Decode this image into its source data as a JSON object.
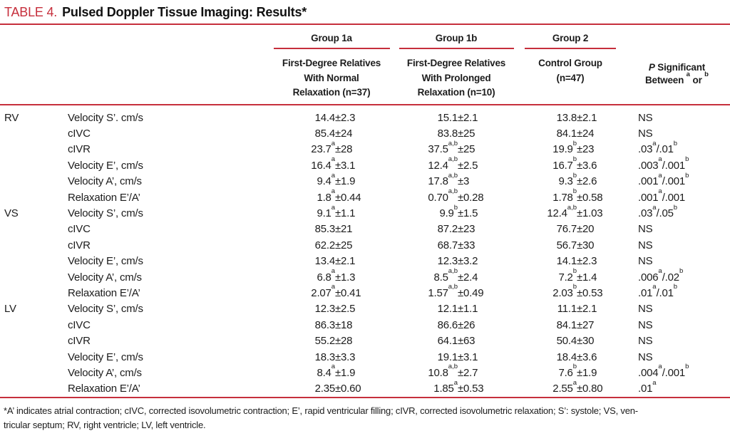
{
  "colors": {
    "accent_red": "#c62f3c",
    "text": "#1c1c1c"
  },
  "title": {
    "tag": "TABLE 4.",
    "text": "Pulsed Doppler Tissue Imaging: Results*"
  },
  "header": {
    "groups": [
      {
        "name": "Group 1a",
        "desc": "First-Degree Relatives\nWith Normal\nRelaxation (n=37)"
      },
      {
        "name": "Group 1b",
        "desc": "First-Degree Relatives\nWith Prolonged\nRelaxation (n=10)"
      },
      {
        "name": "Group 2",
        "desc": "Control Group\n(n=47)"
      }
    ],
    "p_col": {
      "italic": "P",
      "rest": " Significant",
      "line2": "Between ^a^ or ^b^"
    }
  },
  "sections": [
    {
      "region": "RV",
      "rows": [
        {
          "label": "Velocity S’. cm/s",
          "g1a": {
            "v": "14.4",
            "s": "",
            "d": "±2.3"
          },
          "g1b": {
            "v": "15.1",
            "s": "",
            "d": "±2.1"
          },
          "g2": {
            "v": "13.8",
            "s": "",
            "d": "±2.1"
          },
          "p": "NS"
        },
        {
          "label": "cIVC",
          "g1a": {
            "v": "85.4",
            "s": "",
            "d": "±24"
          },
          "g1b": {
            "v": "83.8",
            "s": "",
            "d": "±25"
          },
          "g2": {
            "v": "84.1",
            "s": "",
            "d": "±24"
          },
          "p": "NS"
        },
        {
          "label": "cIVR",
          "g1a": {
            "v": "23.7",
            "s": "a",
            "d": "±28"
          },
          "g1b": {
            "v": "37.5",
            "s": "a,b",
            "d": "±25"
          },
          "g2": {
            "v": "19.9",
            "s": "b",
            "d": "±23"
          },
          "p": ".03^a^/.01^b^"
        },
        {
          "label": "Velocity E’, cm/s",
          "g1a": {
            "v": "16.4",
            "s": "a",
            "d": "±3.1"
          },
          "g1b": {
            "v": "12.4",
            "s": "a,b",
            "d": "±2.5"
          },
          "g2": {
            "v": "16.7",
            "s": "b",
            "d": "±3.6"
          },
          "p": ".003^a^/.001^b^"
        },
        {
          "label": "Velocity A’, cm/s",
          "g1a": {
            "v": "9.4",
            "s": "a",
            "d": "±1.9"
          },
          "g1b": {
            "v": "17.8",
            "s": "a,b",
            "d": "±3"
          },
          "g2": {
            "v": "9.3",
            "s": "b",
            "d": "±2.6"
          },
          "p": ".001^a^/.001^b^"
        },
        {
          "label": "Relaxation E’/A’",
          "g1a": {
            "v": "1.8",
            "s": "a",
            "d": "±0.44"
          },
          "g1b": {
            "v": "0.70",
            "s": "a,b",
            "d": "±0.28"
          },
          "g2": {
            "v": "1.78",
            "s": "b",
            "d": "±0.58"
          },
          "p": ".001^a^/.001"
        }
      ]
    },
    {
      "region": "VS",
      "rows": [
        {
          "label": "Velocity S’, cm/s",
          "g1a": {
            "v": "9.1",
            "s": "a",
            "d": "±1.1"
          },
          "g1b": {
            "v": "9.9",
            "s": "b",
            "d": "±1.5"
          },
          "g2": {
            "v": "12.4",
            "s": "a,b",
            "d": "±1.03"
          },
          "p": ".03^a^/.05^b^"
        },
        {
          "label": "cIVC",
          "g1a": {
            "v": "85.3",
            "s": "",
            "d": "±21"
          },
          "g1b": {
            "v": "87.2",
            "s": "",
            "d": "±23"
          },
          "g2": {
            "v": "76.7",
            "s": "",
            "d": "±20"
          },
          "p": "NS"
        },
        {
          "label": "cIVR",
          "g1a": {
            "v": "62.2",
            "s": "",
            "d": "±25"
          },
          "g1b": {
            "v": "68.7",
            "s": "",
            "d": "±33"
          },
          "g2": {
            "v": "56.7",
            "s": "",
            "d": "±30"
          },
          "p": "NS"
        },
        {
          "label": "Velocity E’, cm/s",
          "g1a": {
            "v": "13.4",
            "s": "",
            "d": "±2.1"
          },
          "g1b": {
            "v": "12.3",
            "s": "",
            "d": "±3.2"
          },
          "g2": {
            "v": "14.1",
            "s": "",
            "d": "±2.3"
          },
          "p": "NS"
        },
        {
          "label": "Velocity A’, cm/s",
          "g1a": {
            "v": "6.8",
            "s": "a",
            "d": "±1.3"
          },
          "g1b": {
            "v": "8.5",
            "s": "a,b",
            "d": "±2.4"
          },
          "g2": {
            "v": "7.2",
            "s": "b",
            "d": "±1.4"
          },
          "p": ".006^a^/.02^b^"
        },
        {
          "label": "Relaxation E’/A’",
          "g1a": {
            "v": "2.07",
            "s": "a",
            "d": "±0.41"
          },
          "g1b": {
            "v": "1.57",
            "s": "a,b",
            "d": "±0.49"
          },
          "g2": {
            "v": "2.03",
            "s": "b",
            "d": "±0.53"
          },
          "p": ".01^a^/.01^b^"
        }
      ]
    },
    {
      "region": "LV",
      "rows": [
        {
          "label": "Velocity S’, cm/s",
          "g1a": {
            "v": "12.3",
            "s": "",
            "d": "±2.5"
          },
          "g1b": {
            "v": "12.1",
            "s": "",
            "d": "±1.1"
          },
          "g2": {
            "v": "11.1",
            "s": "",
            "d": "±2.1"
          },
          "p": "NS"
        },
        {
          "label": "cIVC",
          "g1a": {
            "v": "86.3",
            "s": "",
            "d": "±18"
          },
          "g1b": {
            "v": "86.6",
            "s": "",
            "d": "±26"
          },
          "g2": {
            "v": "84.1",
            "s": "",
            "d": "±27"
          },
          "p": "NS"
        },
        {
          "label": "cIVR",
          "g1a": {
            "v": "55.2",
            "s": "",
            "d": "±28"
          },
          "g1b": {
            "v": "64.1",
            "s": "",
            "d": "±63"
          },
          "g2": {
            "v": "50.4",
            "s": "",
            "d": "±30"
          },
          "p": "NS"
        },
        {
          "label": "Velocity E’, cm/s",
          "g1a": {
            "v": "18.3",
            "s": "",
            "d": "±3.3"
          },
          "g1b": {
            "v": "19.1",
            "s": "",
            "d": "±3.1"
          },
          "g2": {
            "v": "18.4",
            "s": "",
            "d": "±3.6"
          },
          "p": "NS"
        },
        {
          "label": "Velocity A’, cm/s",
          "g1a": {
            "v": "8.4",
            "s": "a",
            "d": "±1.9"
          },
          "g1b": {
            "v": "10.8",
            "s": "a,b",
            "d": "±2.7"
          },
          "g2": {
            "v": "7.6",
            "s": "b",
            "d": "±1.9"
          },
          "p": ".004^a^/.001^b^"
        },
        {
          "label": "Relaxation E’/A’",
          "g1a": {
            "v": "2.35",
            "s": "",
            "d": "±0.60"
          },
          "g1b": {
            "v": "1.85",
            "s": "a",
            "d": "±0.53"
          },
          "g2": {
            "v": "2.55",
            "s": "a",
            "d": "±0.80"
          },
          "p": ".01^a^"
        }
      ]
    }
  ],
  "footnote": {
    "line1": "*A’ indicates atrial contraction; cIVC, corrected isovolumetric contraction; E’, rapid ventricular filling; cIVR, corrected isovolumetric relaxation; S’: systole; VS, ven-",
    "line2": "tricular septum; RV, right ventricle; LV, left ventricle."
  }
}
